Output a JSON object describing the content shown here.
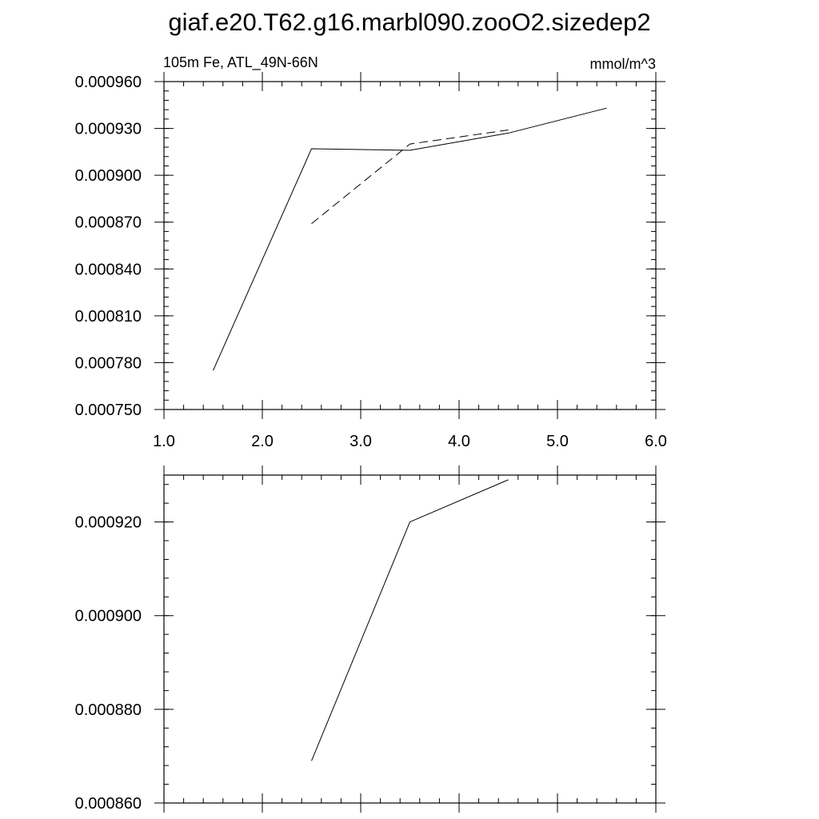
{
  "page": {
    "title": "giaf.e20.T62.g16.marbl090.zooO2.sizedep2"
  },
  "chart_data": [
    {
      "type": "line",
      "left_label": "105m Fe, ATL_49N-66N",
      "right_label": "mmol/m^3",
      "xlim": [
        1.0,
        6.0
      ],
      "ylim": [
        0.00075,
        0.00096
      ],
      "xticks": [
        1.0,
        2.0,
        3.0,
        4.0,
        5.0,
        6.0
      ],
      "xtick_labels": [
        "1.0",
        "2.0",
        "3.0",
        "4.0",
        "5.0",
        "6.0"
      ],
      "yticks": [
        0.00075,
        0.00078,
        0.00081,
        0.00084,
        0.00087,
        0.0009,
        0.00093,
        0.00096
      ],
      "ytick_labels": [
        "0.000750",
        "0.000780",
        "0.000810",
        "0.000840",
        "0.000870",
        "0.000900",
        "0.000930",
        "0.000960"
      ],
      "x_minor_step": 0.2,
      "y_minor_step": 6e-06,
      "grid": false,
      "series": [
        {
          "style": "solid",
          "color": "#000000",
          "x": [
            1.5,
            2.5,
            3.5,
            4.5,
            5.5
          ],
          "y": [
            0.000775,
            0.000917,
            0.000916,
            0.000927,
            0.000943
          ]
        },
        {
          "style": "dashed",
          "color": "#000000",
          "x": [
            2.5,
            3.5,
            4.5
          ],
          "y": [
            0.000869,
            0.00092,
            0.000929
          ]
        }
      ]
    },
    {
      "type": "line",
      "xlim": [
        1.0,
        6.0
      ],
      "ylim": [
        0.00086,
        0.00093
      ],
      "xticks": [
        1.0,
        2.0,
        3.0,
        4.0,
        5.0,
        6.0
      ],
      "xtick_labels": [],
      "yticks": [
        0.00086,
        0.00088,
        0.0009,
        0.00092
      ],
      "ytick_labels": [
        "0.000860",
        "0.000880",
        "0.000900",
        "0.000920"
      ],
      "x_minor_step": 0.2,
      "y_minor_step": 4e-06,
      "grid": false,
      "series": [
        {
          "style": "solid",
          "color": "#000000",
          "x": [
            2.5,
            3.5,
            4.5
          ],
          "y": [
            0.000869,
            0.00092,
            0.000929
          ]
        }
      ]
    }
  ]
}
